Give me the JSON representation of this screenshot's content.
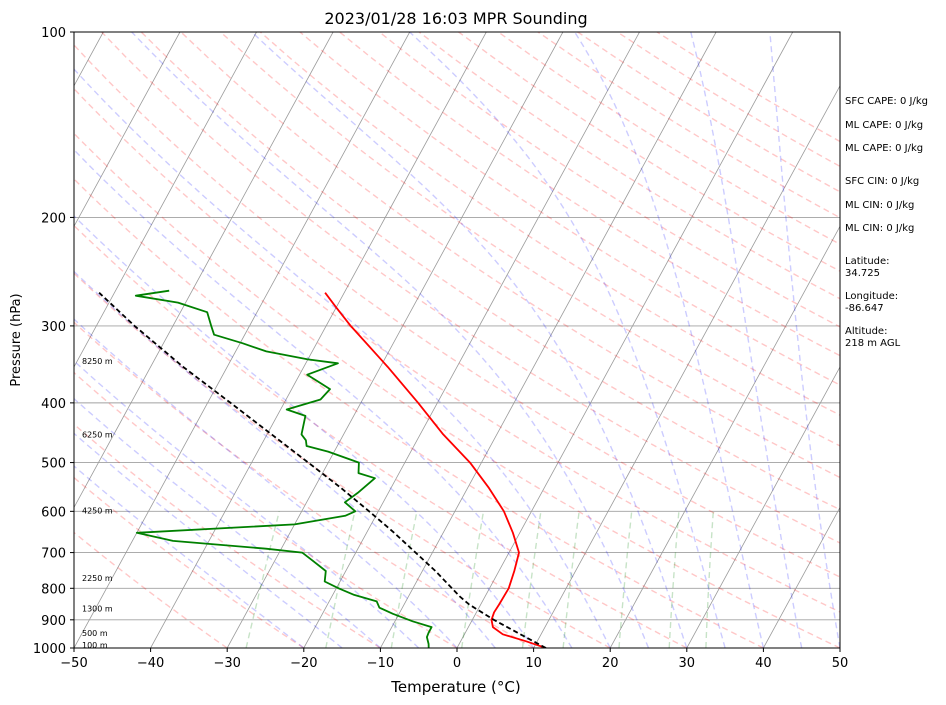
{
  "chart_data": {
    "type": "line",
    "title": "2023/01/28 16:03 MPR Sounding",
    "xlabel": "Temperature (°C)",
    "ylabel": "Pressure (hPa)",
    "xlim": [
      -50,
      50
    ],
    "ylim": [
      1000,
      100
    ],
    "y_scale": "log",
    "x_ticks": [
      "−50",
      "−40",
      "−30",
      "−20",
      "−10",
      "0",
      "10",
      "20",
      "30",
      "40",
      "50"
    ],
    "y_ticks": [
      "1000",
      "900",
      "800",
      "700",
      "600",
      "500",
      "400",
      "300",
      "200",
      "100"
    ],
    "grid": true,
    "legend": "none",
    "series": [
      {
        "role": "temperature",
        "color": "#ff0000",
        "points": [
          [
            1000,
            11.6
          ],
          [
            975,
            8.5
          ],
          [
            950,
            5.0
          ],
          [
            925,
            3.2
          ],
          [
            900,
            2.5
          ],
          [
            875,
            2.3
          ],
          [
            850,
            2.4
          ],
          [
            800,
            2.5
          ],
          [
            750,
            2.0
          ],
          [
            700,
            1.3
          ],
          [
            650,
            -0.9
          ],
          [
            600,
            -3.6
          ],
          [
            550,
            -7.2
          ],
          [
            500,
            -11.5
          ],
          [
            450,
            -17.0
          ],
          [
            400,
            -22.5
          ],
          [
            350,
            -29.0
          ],
          [
            300,
            -36.8
          ],
          [
            280,
            -40.0
          ],
          [
            265,
            -42.5
          ]
        ]
      },
      {
        "role": "dewpoint",
        "color": "#008000",
        "points": [
          [
            1000,
            -3.7
          ],
          [
            985,
            -4.0
          ],
          [
            960,
            -4.7
          ],
          [
            945,
            -4.8
          ],
          [
            925,
            -4.8
          ],
          [
            905,
            -7.7
          ],
          [
            880,
            -10.8
          ],
          [
            860,
            -13.0
          ],
          [
            840,
            -13.8
          ],
          [
            820,
            -17.2
          ],
          [
            800,
            -19.7
          ],
          [
            780,
            -22.0
          ],
          [
            750,
            -22.6
          ],
          [
            720,
            -25.2
          ],
          [
            700,
            -27.0
          ],
          [
            690,
            -32.0
          ],
          [
            670,
            -44.7
          ],
          [
            650,
            -50.0
          ],
          [
            630,
            -30.0
          ],
          [
            610,
            -24.0
          ],
          [
            600,
            -23.0
          ],
          [
            580,
            -25.0
          ],
          [
            560,
            -24.0
          ],
          [
            530,
            -22.8
          ],
          [
            520,
            -25.3
          ],
          [
            500,
            -26.0
          ],
          [
            480,
            -30.8
          ],
          [
            470,
            -34.0
          ],
          [
            460,
            -34.5
          ],
          [
            450,
            -35.5
          ],
          [
            420,
            -36.3
          ],
          [
            410,
            -39.2
          ],
          [
            395,
            -35.5
          ],
          [
            380,
            -35.0
          ],
          [
            360,
            -39.0
          ],
          [
            345,
            -35.8
          ],
          [
            340,
            -40.0
          ],
          [
            330,
            -46.0
          ],
          [
            320,
            -49.7
          ],
          [
            310,
            -54.0
          ],
          [
            300,
            -55.0
          ],
          [
            285,
            -56.5
          ],
          [
            275,
            -61.0
          ],
          [
            268,
            -67.0
          ],
          [
            263,
            -63.0
          ]
        ]
      },
      {
        "role": "parcel",
        "color": "#000000",
        "dashed": true,
        "points": [
          [
            1000,
            11.6
          ],
          [
            950,
            7.3
          ],
          [
            900,
            2.8
          ],
          [
            850,
            -1.5
          ],
          [
            825,
            -3.3
          ],
          [
            800,
            -4.9
          ],
          [
            750,
            -8.3
          ],
          [
            700,
            -12.2
          ],
          [
            650,
            -16.4
          ],
          [
            600,
            -21.2
          ],
          [
            550,
            -26.5
          ],
          [
            500,
            -32.6
          ],
          [
            450,
            -39.4
          ],
          [
            400,
            -47.0
          ],
          [
            350,
            -55.7
          ],
          [
            300,
            -65.0
          ],
          [
            265,
            -72.0
          ]
        ]
      }
    ],
    "height_labels": [
      {
        "text": "100 m",
        "p": 988
      },
      {
        "text": "500 m",
        "p": 945
      },
      {
        "text": "1300 m",
        "p": 862
      },
      {
        "text": "2250 m",
        "p": 770
      },
      {
        "text": "4250 m",
        "p": 598
      },
      {
        "text": "6250 m",
        "p": 450
      },
      {
        "text": "8250 m",
        "p": 342
      }
    ],
    "side_text": [
      "SFC CAPE: 0 J/kg",
      "ML CAPE: 0 J/kg",
      "ML CAPE: 0 J/kg",
      "SFC CIN: 0 J/kg",
      "ML CIN: 0 J/kg",
      "ML CIN: 0 J/kg",
      "Latitude:",
      "34.725",
      "Longitude:",
      "-86.647",
      "Altitude:",
      "218 m AGL"
    ],
    "colors": {
      "dry_adiabats": "#ff0000",
      "moist_adiabats": "#0000ff",
      "mixing_ratio": "#008000",
      "isotherms": "#808080",
      "isobars": "#808080"
    }
  }
}
